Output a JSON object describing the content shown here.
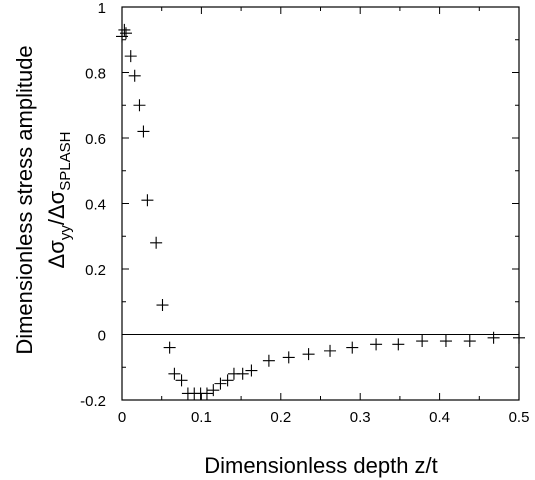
{
  "chart_data": {
    "type": "scatter",
    "marker": "plus",
    "xlabel": "Dimensionless depth z/t",
    "ylabel_line1": "Dimensionless stress amplitude",
    "ylabel_line2": {
      "delta1": "Δσ",
      "sub1": "yy",
      "slash": "/",
      "delta2": "Δσ",
      "sub2": "SPLASH"
    },
    "xlim": [
      0,
      0.5
    ],
    "ylim": [
      -0.2,
      1.0
    ],
    "x_ticks": [
      0,
      0.1,
      0.2,
      0.3,
      0.4,
      0.5
    ],
    "x_tick_labels": [
      "0",
      "0.1",
      "0.2",
      "0.3",
      "0.4",
      "0.5"
    ],
    "y_ticks": [
      -0.2,
      0,
      0.2,
      0.4,
      0.6,
      0.8,
      1.0
    ],
    "y_tick_labels": [
      "-0.2",
      "0",
      "0.2",
      "0.4",
      "0.6",
      "0.8",
      "1"
    ],
    "zero_line": true,
    "grid": false,
    "points": [
      {
        "x": 0.0,
        "y": 0.91
      },
      {
        "x": 0.003,
        "y": 0.93
      },
      {
        "x": 0.005,
        "y": 0.92
      },
      {
        "x": 0.011,
        "y": 0.85
      },
      {
        "x": 0.016,
        "y": 0.79
      },
      {
        "x": 0.022,
        "y": 0.7
      },
      {
        "x": 0.027,
        "y": 0.62
      },
      {
        "x": 0.032,
        "y": 0.41
      },
      {
        "x": 0.043,
        "y": 0.28
      },
      {
        "x": 0.051,
        "y": 0.09
      },
      {
        "x": 0.06,
        "y": -0.04
      },
      {
        "x": 0.066,
        "y": -0.12
      },
      {
        "x": 0.075,
        "y": -0.14
      },
      {
        "x": 0.083,
        "y": -0.18
      },
      {
        "x": 0.091,
        "y": -0.18
      },
      {
        "x": 0.099,
        "y": -0.18
      },
      {
        "x": 0.107,
        "y": -0.18
      },
      {
        "x": 0.115,
        "y": -0.17
      },
      {
        "x": 0.124,
        "y": -0.15
      },
      {
        "x": 0.133,
        "y": -0.14
      },
      {
        "x": 0.141,
        "y": -0.12
      },
      {
        "x": 0.152,
        "y": -0.12
      },
      {
        "x": 0.163,
        "y": -0.11
      },
      {
        "x": 0.185,
        "y": -0.08
      },
      {
        "x": 0.21,
        "y": -0.07
      },
      {
        "x": 0.235,
        "y": -0.06
      },
      {
        "x": 0.262,
        "y": -0.05
      },
      {
        "x": 0.29,
        "y": -0.04
      },
      {
        "x": 0.32,
        "y": -0.03
      },
      {
        "x": 0.348,
        "y": -0.03
      },
      {
        "x": 0.378,
        "y": -0.02
      },
      {
        "x": 0.408,
        "y": -0.02
      },
      {
        "x": 0.438,
        "y": -0.02
      },
      {
        "x": 0.468,
        "y": -0.01
      },
      {
        "x": 0.5,
        "y": -0.01
      }
    ]
  }
}
